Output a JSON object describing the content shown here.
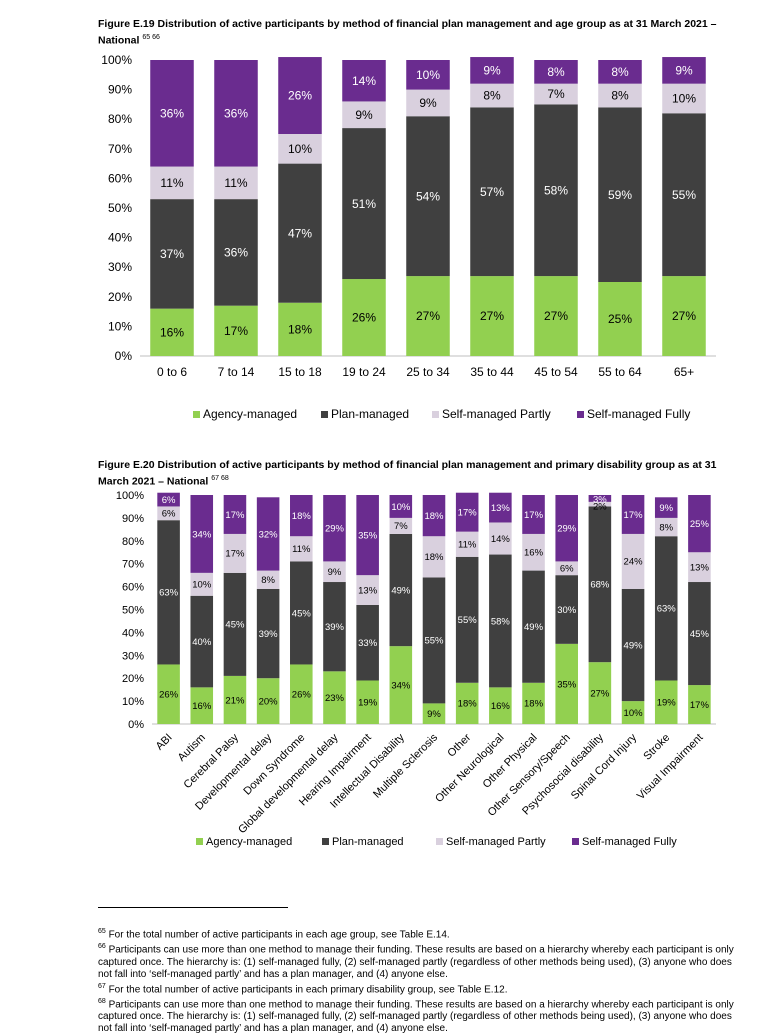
{
  "figures": [
    {
      "title": "Figure E.19 Distribution of active participants by method of financial plan management and age group as at 31 March 2021 – National",
      "refs": "65 66"
    },
    {
      "title": "Figure E.20 Distribution of active participants by method of financial plan management and primary disability group as at 31 March 2021 – National",
      "refs": "67 68"
    }
  ],
  "colors": {
    "agency": "#92D050",
    "plan": "#404040",
    "partly": "#D9D0DE",
    "fully": "#6A2C8F",
    "grid": "#d9d9d9"
  },
  "chart_data": [
    {
      "type": "bar",
      "stacked": true,
      "percent": true,
      "title": "Figure E.19 Distribution of active participants by method of financial plan management and age group as at 31 March 2021 – National",
      "categories": [
        "0 to 6",
        "7 to 14",
        "15 to 18",
        "19 to 24",
        "25 to 34",
        "35 to 44",
        "45 to 54",
        "55 to 64",
        "65+"
      ],
      "series": [
        {
          "name": "Agency-managed",
          "values": [
            16,
            17,
            18,
            26,
            27,
            27,
            27,
            25,
            27
          ]
        },
        {
          "name": "Plan-managed",
          "values": [
            37,
            36,
            47,
            51,
            54,
            57,
            58,
            59,
            55
          ]
        },
        {
          "name": "Self-managed Partly",
          "values": [
            11,
            11,
            10,
            9,
            9,
            8,
            7,
            8,
            10
          ]
        },
        {
          "name": "Self-managed Fully",
          "values": [
            36,
            36,
            26,
            14,
            10,
            9,
            8,
            8,
            9
          ]
        }
      ],
      "yticks": [
        "0%",
        "10%",
        "20%",
        "30%",
        "40%",
        "50%",
        "60%",
        "70%",
        "80%",
        "90%",
        "100%"
      ],
      "ylim": [
        0,
        100
      ],
      "legend": "bottom",
      "grid": false
    },
    {
      "type": "bar",
      "stacked": true,
      "percent": true,
      "title": "Figure E.20 Distribution of active participants by method of financial plan management and primary disability group as at 31 March 2021 – National",
      "categories": [
        "ABI",
        "Autism",
        "Cerebral Palsy",
        "Developmental delay",
        "Down Syndrome",
        "Global developmental delay",
        "Hearing Impairment",
        "Intellectual Disability",
        "Multiple Sclerosis",
        "Other",
        "Other Neurological",
        "Other Physical",
        "Other Sensory/Speech",
        "Psychosocial disability",
        "Spinal Cord Injury",
        "Stroke",
        "Visual Impairment"
      ],
      "series": [
        {
          "name": "Agency-managed",
          "values": [
            26,
            16,
            21,
            20,
            26,
            23,
            19,
            34,
            9,
            18,
            16,
            18,
            35,
            27,
            10,
            19,
            17
          ]
        },
        {
          "name": "Plan-managed",
          "values": [
            63,
            40,
            45,
            39,
            45,
            39,
            33,
            49,
            55,
            55,
            58,
            49,
            30,
            68,
            49,
            63,
            45
          ]
        },
        {
          "name": "Self-managed Partly",
          "values": [
            6,
            10,
            17,
            8,
            11,
            9,
            13,
            7,
            18,
            11,
            14,
            16,
            6,
            2,
            24,
            8,
            13
          ]
        },
        {
          "name": "Self-managed Fully",
          "values": [
            6,
            34,
            17,
            32,
            18,
            29,
            35,
            10,
            18,
            17,
            13,
            17,
            29,
            3,
            17,
            9,
            25
          ]
        }
      ],
      "labels": {
        "Agency-managed": [
          "26%",
          "16%",
          "21%",
          "20%",
          "26%",
          "23%",
          "19%",
          "34%",
          "9%",
          "18%",
          "16%",
          "18%",
          "35%",
          "27%",
          "10%",
          "19%",
          "17%"
        ],
        "Plan-managed": [
          "63%",
          "40%",
          "45%",
          "39%",
          "45%",
          "39%",
          "33%",
          "49%",
          "55%",
          "55%",
          "58%",
          "49%",
          "30%",
          "68%",
          "49%",
          "63%",
          "45%"
        ],
        "Self-managed Partly": [
          "6%",
          "10%",
          "17%",
          "8%",
          "11%",
          "9%",
          "13%",
          "7%",
          "18%",
          "11%",
          "14%",
          "16%",
          "6%",
          "2%",
          "24%",
          "8%",
          "13%"
        ],
        "Self-managed Fully": [
          "6%",
          "34%",
          "17%",
          "32%",
          "18%",
          "29%",
          "35%",
          "10%",
          "18%",
          "17%",
          "13%",
          "17%",
          "29%",
          "3%",
          "17%",
          "9%",
          "25%"
        ]
      },
      "yticks": [
        "0%",
        "10%",
        "20%",
        "30%",
        "40%",
        "50%",
        "60%",
        "70%",
        "80%",
        "90%",
        "100%"
      ],
      "ylim": [
        0,
        100
      ],
      "legend": "bottom",
      "grid": false
    }
  ],
  "legend_labels": [
    "Agency-managed",
    "Plan-managed",
    "Self-managed Partly",
    "Self-managed Fully"
  ],
  "footnotes": [
    {
      "num": "65",
      "text": "For the total number of active participants in each age group, see Table E.14."
    },
    {
      "num": "66",
      "text": "Participants can use more than one method to manage their funding. These results are based on a hierarchy whereby each participant is only captured once. The hierarchy is: (1) self-managed fully, (2) self-managed partly (regardless of other methods being used), (3) anyone who does not fall into ‘self-managed partly’ and has a plan manager, and (4) anyone else."
    },
    {
      "num": "67",
      "text": "For the total number of active participants in each primary disability group, see Table E.12."
    },
    {
      "num": "68",
      "text": "Participants can use more than one method to manage their funding. These results are based on a hierarchy whereby each participant is only captured once. The hierarchy is: (1) self-managed fully, (2) self-managed partly (regardless of other methods being used), (3) anyone who does not fall into ‘self-managed partly’ and has a plan manager, and (4) anyone else."
    }
  ]
}
